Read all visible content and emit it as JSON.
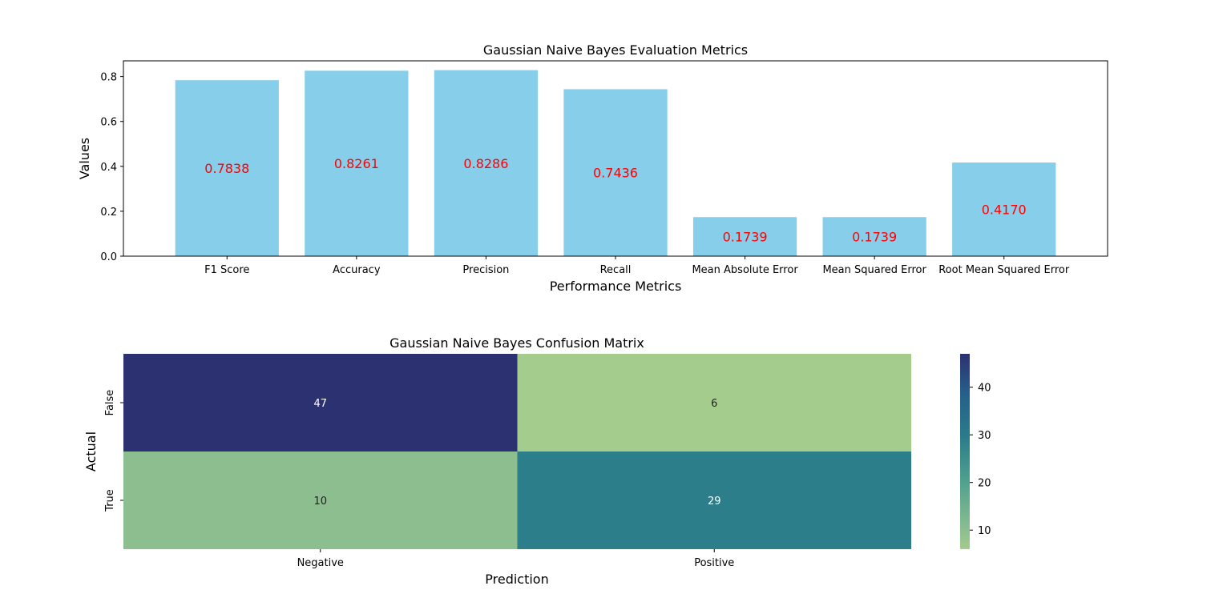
{
  "chart_data": [
    {
      "type": "bar",
      "title": "Gaussian Naive Bayes Evaluation Metrics",
      "xlabel": "Performance Metrics",
      "ylabel": "Values",
      "categories": [
        "F1 Score",
        "Accuracy",
        "Precision",
        "Recall",
        "Mean Absolute Error",
        "Mean Squared Error",
        "Root Mean Squared Error"
      ],
      "values": [
        0.7838,
        0.8261,
        0.8286,
        0.7436,
        0.1739,
        0.1739,
        0.417
      ],
      "value_labels": [
        "0.7838",
        "0.8261",
        "0.8286",
        "0.7436",
        "0.1739",
        "0.1739",
        "0.4170"
      ],
      "yticks": [
        "0.0",
        "0.2",
        "0.4",
        "0.6",
        "0.8"
      ],
      "ylim": [
        0,
        0.87
      ],
      "bar_color": "#87ceeb",
      "label_color": "#ff0000",
      "grid": false
    },
    {
      "type": "heatmap",
      "title": "Gaussian Naive Bayes Confusion Matrix",
      "xlabel": "Prediction",
      "ylabel": "Actual",
      "x_categories": [
        "Negative",
        "Positive"
      ],
      "y_categories": [
        "False",
        "True"
      ],
      "values": [
        [
          47,
          6
        ],
        [
          10,
          29
        ]
      ],
      "colorbar_ticks": [
        "10",
        "20",
        "30",
        "40"
      ],
      "colorbar_range": [
        6,
        47
      ],
      "colormap": "crest"
    }
  ]
}
